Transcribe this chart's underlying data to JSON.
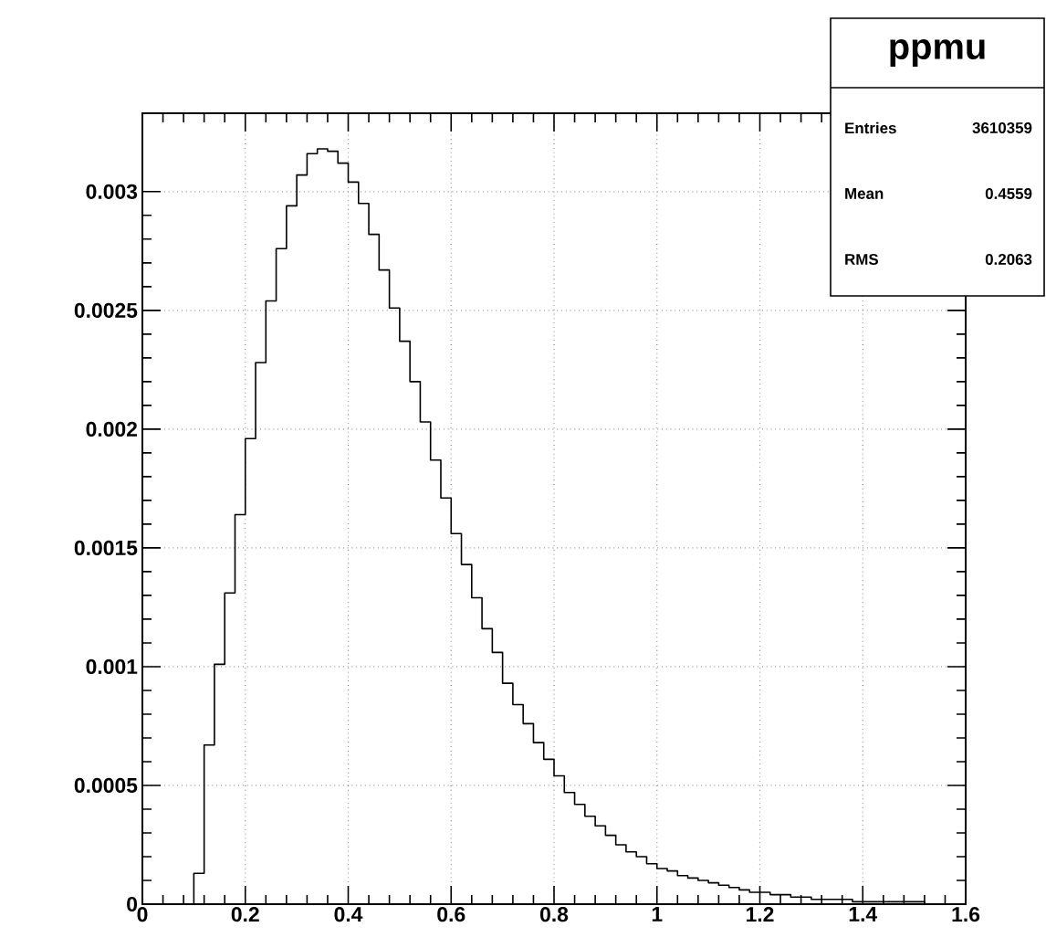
{
  "chart_data": {
    "type": "histogram",
    "title": "ppmu",
    "annotations": [
      "Entries",
      "3610359",
      "Mean",
      "0.4559",
      "RMS",
      "0.2063"
    ],
    "bins": [
      0,
      0.02,
      0.04,
      0.06,
      0.08,
      0.1,
      0.12,
      0.14,
      0.16,
      0.18,
      0.2,
      0.22,
      0.24,
      0.26,
      0.28,
      0.3,
      0.32,
      0.34,
      0.36,
      0.38,
      0.4,
      0.42,
      0.44,
      0.46,
      0.48,
      0.5,
      0.52,
      0.54,
      0.56,
      0.58,
      0.6,
      0.62,
      0.64,
      0.66,
      0.68,
      0.7,
      0.72,
      0.74,
      0.76,
      0.78,
      0.8,
      0.82,
      0.84,
      0.86,
      0.88,
      0.9,
      0.92,
      0.94,
      0.96,
      0.98,
      1.0,
      1.02,
      1.04,
      1.06,
      1.08,
      1.1,
      1.12,
      1.14,
      1.16,
      1.18,
      1.2,
      1.22,
      1.24,
      1.26,
      1.28,
      1.3,
      1.32,
      1.34,
      1.36,
      1.38,
      1.4,
      1.42,
      1.44,
      1.46,
      1.48,
      1.5,
      1.52,
      1.54,
      1.56,
      1.58,
      1.6
    ],
    "values": [
      0,
      0,
      0,
      0,
      0,
      0.00013,
      0.00067,
      0.00101,
      0.00131,
      0.00164,
      0.00196,
      0.00228,
      0.00254,
      0.00276,
      0.00294,
      0.00307,
      0.00316,
      0.00318,
      0.00317,
      0.00312,
      0.00304,
      0.00295,
      0.00282,
      0.00267,
      0.00251,
      0.00237,
      0.0022,
      0.00203,
      0.00187,
      0.00171,
      0.00156,
      0.00143,
      0.00129,
      0.00116,
      0.00106,
      0.00093,
      0.00084,
      0.00076,
      0.00068,
      0.00061,
      0.00054,
      0.00047,
      0.00042,
      0.00037,
      0.00033,
      0.00029,
      0.00025,
      0.00022,
      0.0002,
      0.00017,
      0.00015,
      0.00014,
      0.00012,
      0.00011,
      0.0001,
      9e-05,
      8e-05,
      7e-05,
      6e-05,
      5e-05,
      5e-05,
      4e-05,
      4e-05,
      3e-05,
      3e-05,
      2e-05,
      2e-05,
      2e-05,
      2e-05,
      1e-05,
      1e-05,
      1e-05,
      1e-05,
      1e-05,
      1e-05,
      1e-05,
      0,
      0,
      0,
      0
    ],
    "color": "#000000",
    "xlim": [
      0,
      1.6
    ],
    "xticks": [
      0,
      0.2,
      0.4,
      0.6,
      0.8,
      1,
      1.2,
      1.4,
      1.6
    ],
    "ylim": [
      0,
      0.00333
    ],
    "yticks": [
      0,
      0.0005,
      0.001,
      0.0015,
      0.002,
      0.0025,
      0.003
    ],
    "grid": true
  }
}
